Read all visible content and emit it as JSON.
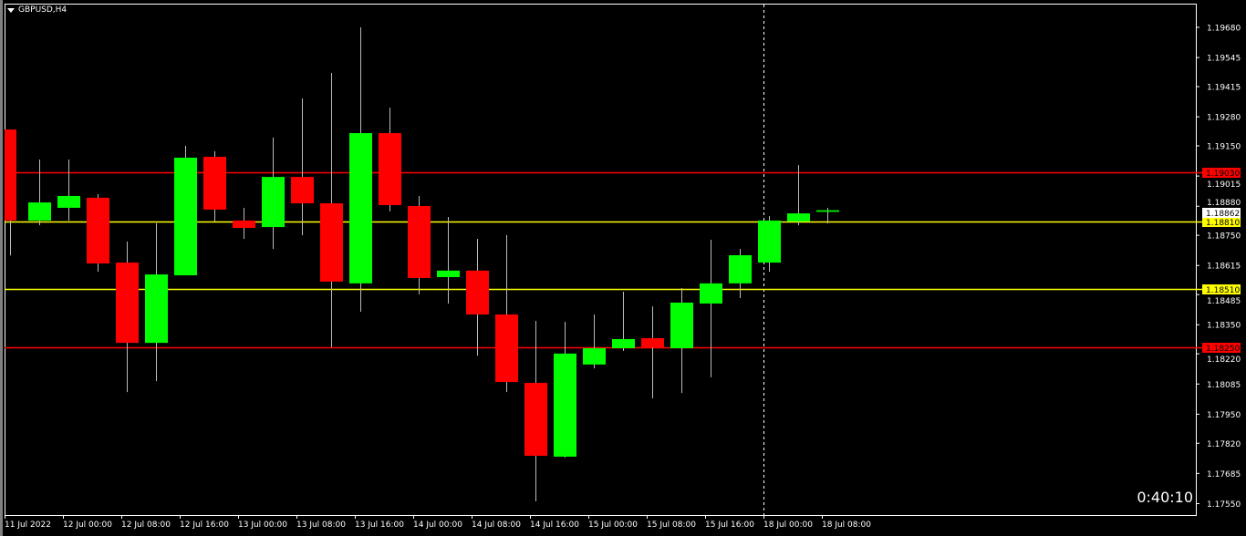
{
  "window": {
    "symbol_timeframe": "GBPUSD,H4"
  },
  "timer": "0:40:10",
  "colors": {
    "background": "#000000",
    "bull": "#00ff00",
    "bear": "#ff0000",
    "axis": "#ffffff",
    "support": "#ffff00",
    "resistance": "#ff0000"
  },
  "price_axis": {
    "ticks": [
      "1.19680",
      "1.19545",
      "1.19415",
      "1.19280",
      "1.19150",
      "1.19015",
      "1.18880",
      "1.18750",
      "1.18615",
      "1.18485",
      "1.18350",
      "1.18220",
      "1.18085",
      "1.17950",
      "1.17820",
      "1.17685",
      "1.17550"
    ],
    "current_price": "1.18862"
  },
  "time_axis": {
    "labels": [
      "11 Jul 2022",
      "12 Jul 00:00",
      "12 Jul 08:00",
      "12 Jul 16:00",
      "13 Jul 00:00",
      "13 Jul 08:00",
      "13 Jul 16:00",
      "14 Jul 00:00",
      "14 Jul 08:00",
      "14 Jul 16:00",
      "15 Jul 00:00",
      "15 Jul 08:00",
      "15 Jul 16:00",
      "18 Jul 00:00",
      "18 Jul 08:00"
    ]
  },
  "horizontal_lines": [
    {
      "price": "1.19030",
      "color": "#ff0000",
      "label_text_color": "#000000"
    },
    {
      "price": "1.18810",
      "color": "#ffff00",
      "label_text_color": "#000000"
    },
    {
      "price": "1.18510",
      "color": "#ffff00",
      "label_text_color": "#000000"
    },
    {
      "price": "1.18250",
      "color": "#ff0000",
      "label_text_color": "#000000"
    }
  ],
  "chart_data": {
    "type": "candlestick",
    "symbol": "GBPUSD",
    "timeframe": "H4",
    "ylim": [
      1.1755,
      1.1968
    ],
    "candles": [
      {
        "o": 1.19223,
        "h": 1.19223,
        "l": 1.1866,
        "c": 1.18816
      },
      {
        "o": 1.18816,
        "h": 1.19089,
        "l": 1.18795,
        "c": 1.18897
      },
      {
        "o": 1.18873,
        "h": 1.19089,
        "l": 1.18816,
        "c": 1.18926
      },
      {
        "o": 1.18918,
        "h": 1.18934,
        "l": 1.18587,
        "c": 1.18624
      },
      {
        "o": 1.18628,
        "h": 1.18722,
        "l": 1.18049,
        "c": 1.18269
      },
      {
        "o": 1.18269,
        "h": 1.18804,
        "l": 1.18098,
        "c": 1.18575
      },
      {
        "o": 1.18571,
        "h": 1.1915,
        "l": 1.18571,
        "c": 1.19097
      },
      {
        "o": 1.19101,
        "h": 1.19126,
        "l": 1.18812,
        "c": 1.18865
      },
      {
        "o": 1.18816,
        "h": 1.18873,
        "l": 1.18734,
        "c": 1.18783
      },
      {
        "o": 1.18787,
        "h": 1.19187,
        "l": 1.18689,
        "c": 1.19011
      },
      {
        "o": 1.19011,
        "h": 1.19362,
        "l": 1.1875,
        "c": 1.18893
      },
      {
        "o": 1.18893,
        "h": 1.19476,
        "l": 1.18249,
        "c": 1.18543
      },
      {
        "o": 1.18535,
        "h": 1.1968,
        "l": 1.18408,
        "c": 1.19207
      },
      {
        "o": 1.19207,
        "h": 1.19321,
        "l": 1.18857,
        "c": 1.18885
      },
      {
        "o": 1.18881,
        "h": 1.18926,
        "l": 1.18486,
        "c": 1.18559
      },
      {
        "o": 1.18563,
        "h": 1.18832,
        "l": 1.18445,
        "c": 1.18592
      },
      {
        "o": 1.18592,
        "h": 1.18734,
        "l": 1.18212,
        "c": 1.18396
      },
      {
        "o": 1.18396,
        "h": 1.18751,
        "l": 1.18049,
        "c": 1.18094
      },
      {
        "o": 1.1809,
        "h": 1.18367,
        "l": 1.1756,
        "c": 1.17764
      },
      {
        "o": 1.1776,
        "h": 1.18363,
        "l": 1.17756,
        "c": 1.18221
      },
      {
        "o": 1.18172,
        "h": 1.18396,
        "l": 1.18155,
        "c": 1.18245
      },
      {
        "o": 1.18245,
        "h": 1.18498,
        "l": 1.18233,
        "c": 1.18286
      },
      {
        "o": 1.1829,
        "h": 1.18432,
        "l": 1.18021,
        "c": 1.18249
      },
      {
        "o": 1.18245,
        "h": 1.18514,
        "l": 1.18045,
        "c": 1.18449
      },
      {
        "o": 1.18445,
        "h": 1.1873,
        "l": 1.18115,
        "c": 1.18535
      },
      {
        "o": 1.18535,
        "h": 1.18689,
        "l": 1.18469,
        "c": 1.18661
      },
      {
        "o": 1.18628,
        "h": 1.18836,
        "l": 1.18587,
        "c": 1.18816
      },
      {
        "o": 1.18812,
        "h": 1.19064,
        "l": 1.18795,
        "c": 1.18848
      },
      {
        "o": 1.18855,
        "h": 1.18873,
        "l": 1.18803,
        "c": 1.18862
      }
    ]
  }
}
